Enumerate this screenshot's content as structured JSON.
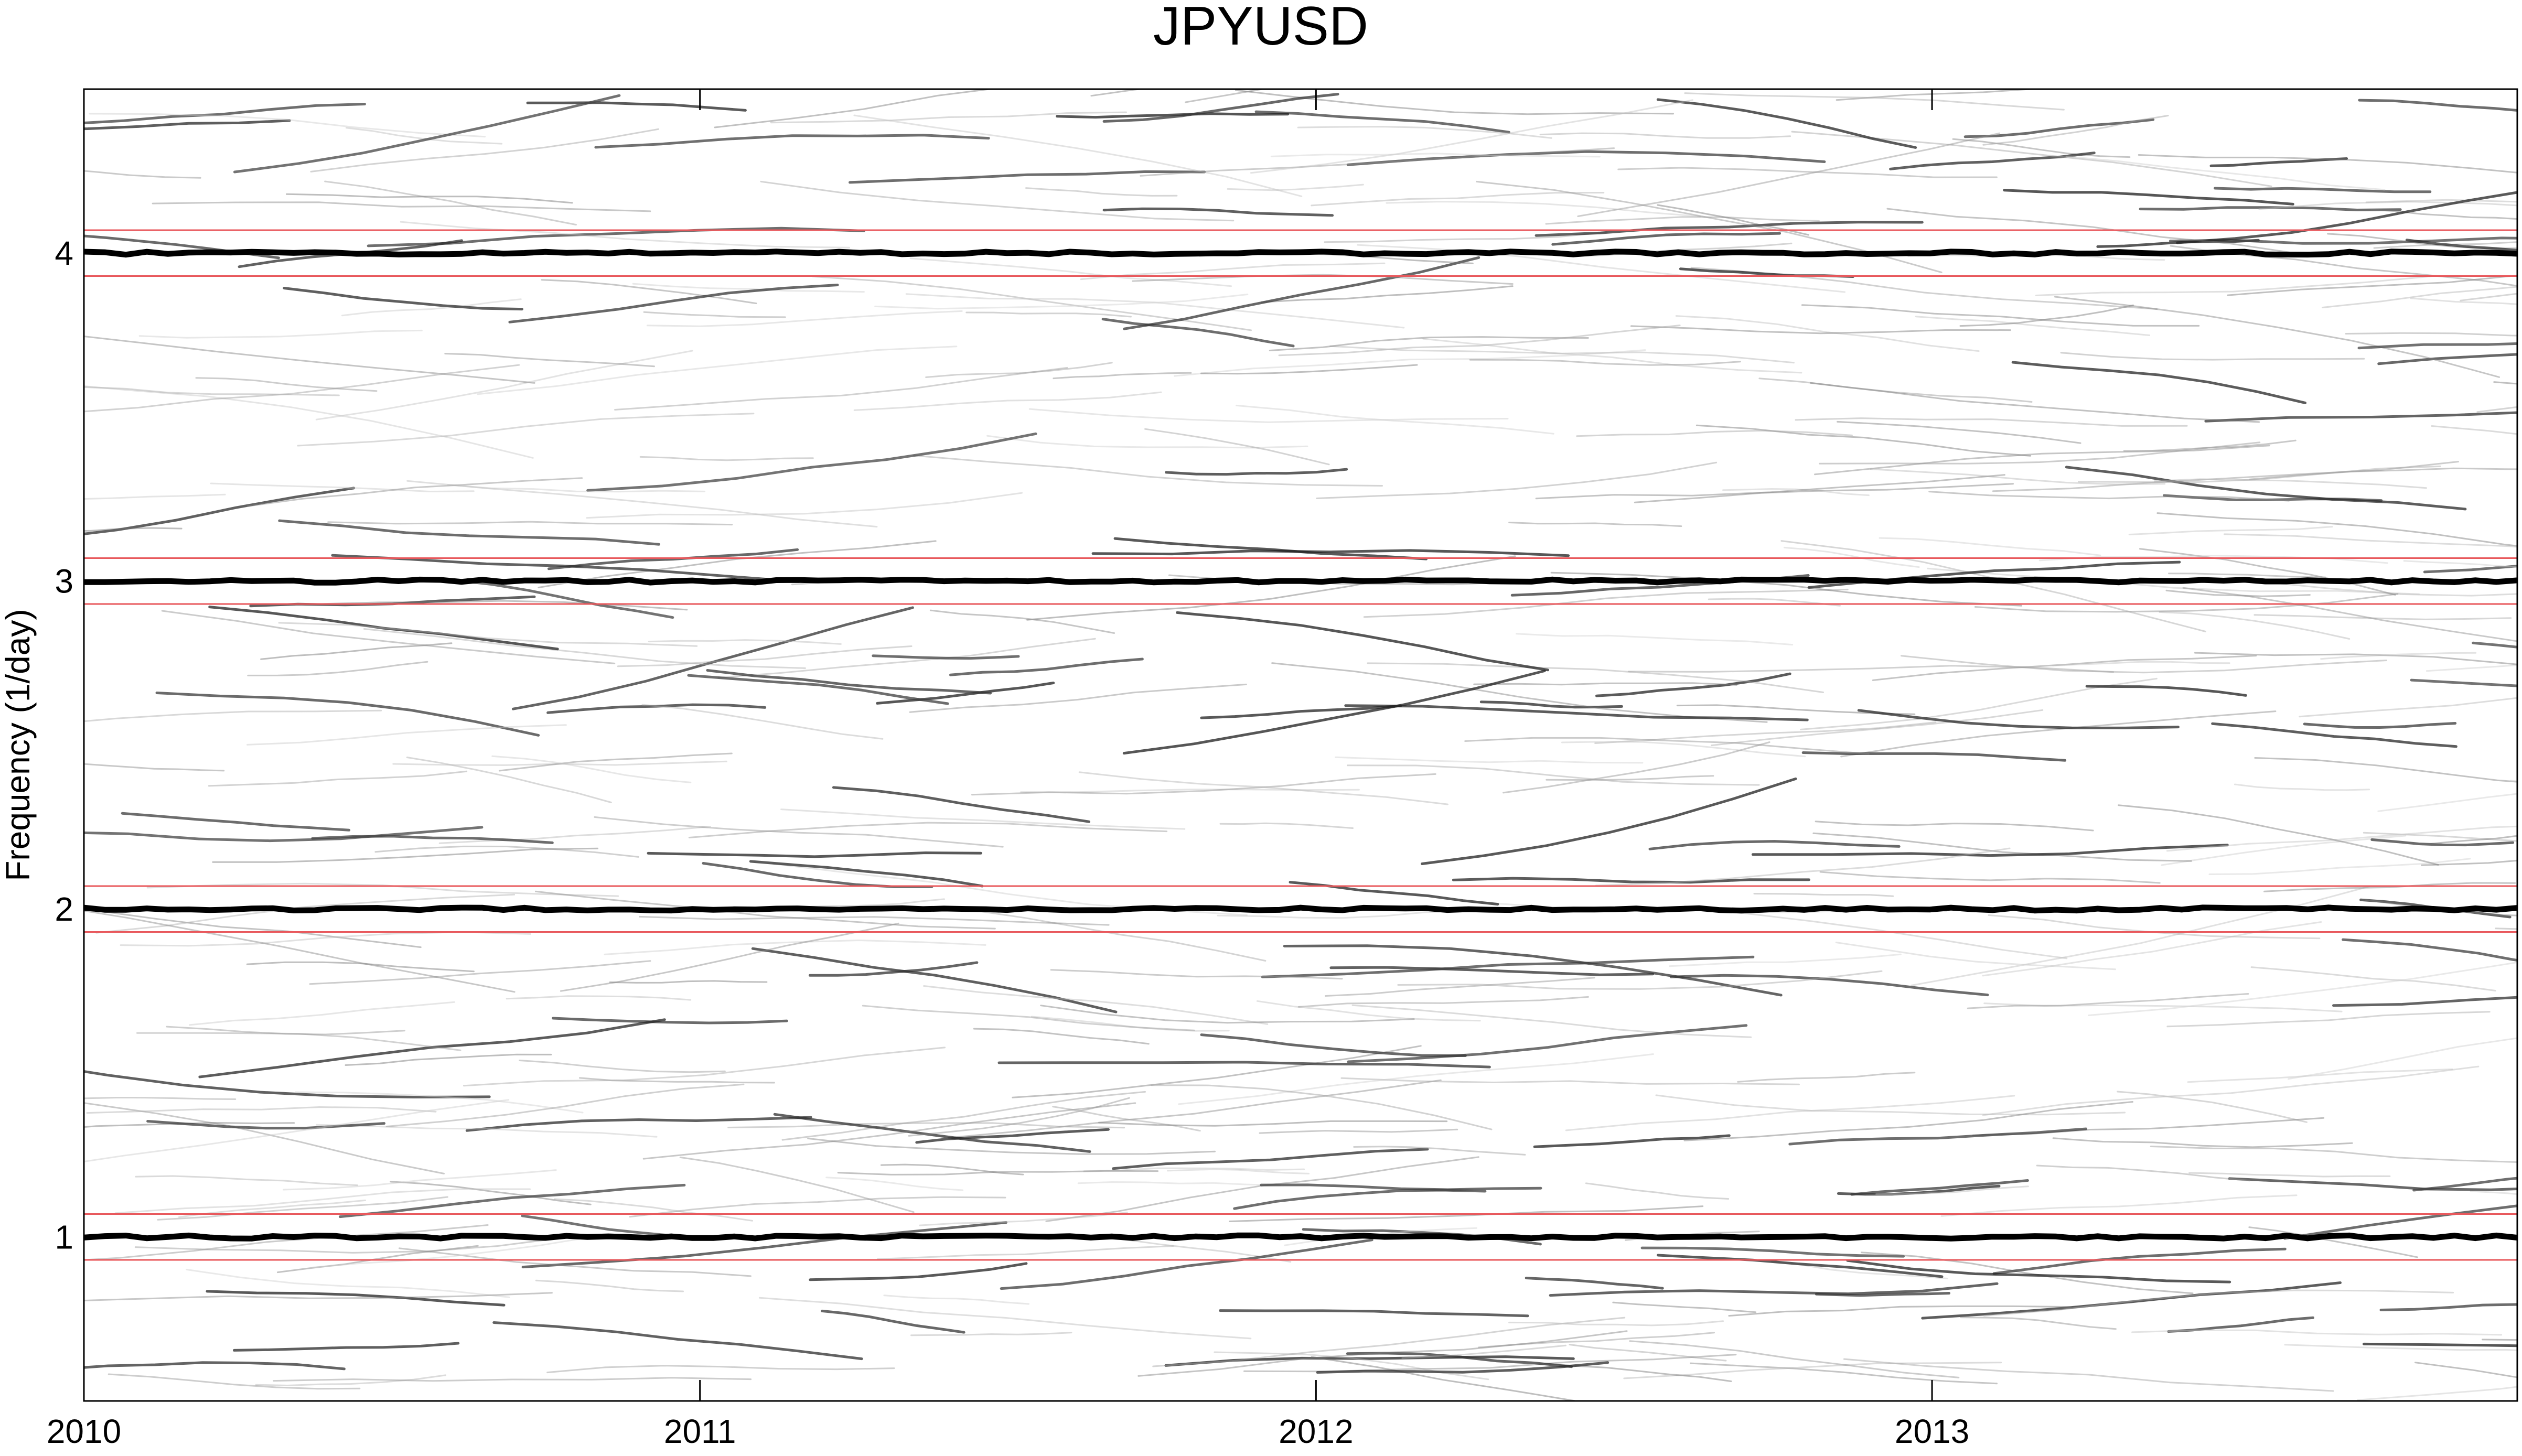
{
  "chart_data": {
    "type": "heatmap",
    "title": "JPYUSD",
    "xlabel": "",
    "ylabel": "Frequency (1/day)",
    "x_ticks": [
      "2010",
      "2011",
      "2012",
      "2013"
    ],
    "x_tick_values": [
      2010,
      2011,
      2012,
      2013
    ],
    "xlim": [
      2010,
      2013.95
    ],
    "y_ticks": [
      "1",
      "2",
      "3",
      "4"
    ],
    "y_tick_values": [
      1,
      2,
      3,
      4
    ],
    "ylim": [
      0.5,
      4.5
    ],
    "colormap": "grayscale (white = low power, black = high power)",
    "dominant_ridges": [
      {
        "frequency": 1,
        "strength": "strong"
      },
      {
        "frequency": 2,
        "strength": "strong"
      },
      {
        "frequency": 3,
        "strength": "strong"
      },
      {
        "frequency": 4,
        "strength": "strong"
      }
    ],
    "reference_lines": {
      "color": "#e8585c",
      "frequencies": [
        0.93,
        1.07,
        1.93,
        2.07,
        2.93,
        3.07,
        3.93,
        4.07
      ]
    },
    "grid": false
  }
}
